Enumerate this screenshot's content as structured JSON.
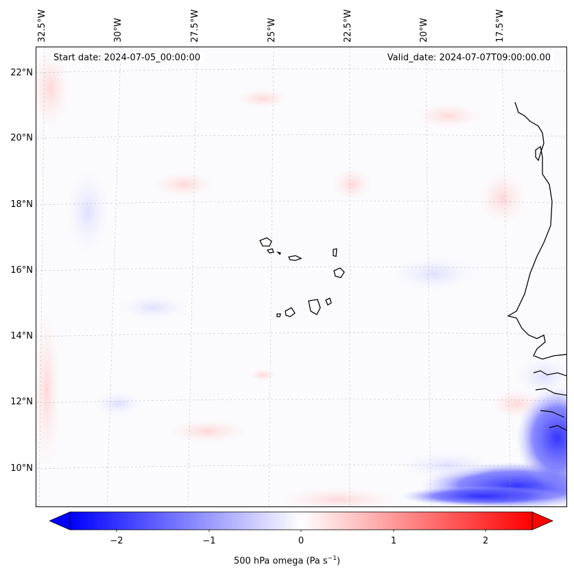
{
  "map": {
    "title_start": "Start date: 2024-07-05_00:00:00",
    "title_valid": "Valid_date: 2024-07-07T09:00:00.00",
    "lon_labels": [
      "32.5°W",
      "30°W",
      "27.5°W",
      "25°W",
      "22.5°W",
      "20°W",
      "17.5°W"
    ],
    "lat_labels": [
      "22°N",
      "20°N",
      "18°N",
      "16°N",
      "14°N",
      "12°N",
      "10°N"
    ],
    "variable": "500 hPa omega",
    "units_prefix": "Pa s",
    "units_exp": "−1",
    "colors": {
      "negative": "#0000ff",
      "zero": "#ffffff",
      "positive": "#ff0000",
      "coast": "#000000"
    }
  },
  "colorbar": {
    "ticks": [
      "−2",
      "−1",
      "0",
      "1",
      "2"
    ],
    "tick_values": [
      -2,
      -1,
      0,
      1,
      2
    ],
    "range": [
      -2.5,
      2.5
    ]
  }
}
